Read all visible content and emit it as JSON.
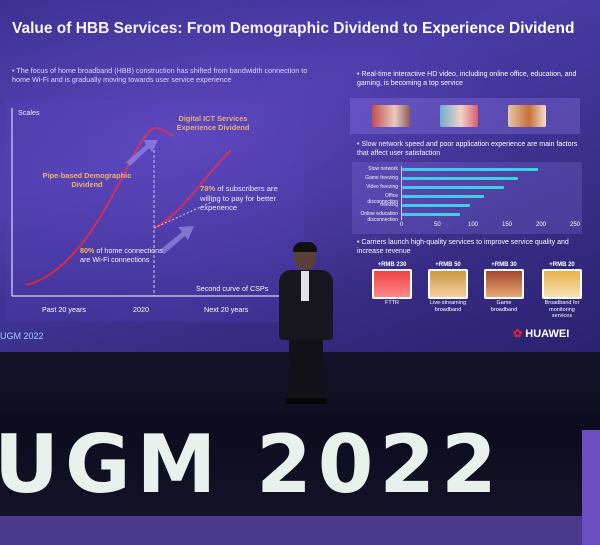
{
  "slide": {
    "title": "Value of HBB Services: From Demographic Dividend to Experience Dividend",
    "intro": "The focus of home broadband (HBB) construction has shifted from bandwidth connection to home Wi-Fi and is gradually moving towards user service experience",
    "chart": {
      "y_label": "Scales",
      "curve1_label": "Pipe-based Demographic Dividend",
      "curve2_label": "Digital ICT Services Experience Dividend",
      "stat1_value": "80%",
      "stat1_text": "of home connections are Wi-Fi connections",
      "stat2_value": "78%",
      "stat2_text": "of subscribers are willing to pay for better experience",
      "curve_note": "Second curve of CSPs",
      "x_labels": [
        "Past 20 years",
        "2020",
        "Next 20 years"
      ]
    },
    "right": {
      "point1": "Real-time interactive HD video, including online office, education, and gaming, is becoming a top service",
      "point2": "Slow network speed and poor application experience are main factors that affect user satisfaction",
      "bars": [
        {
          "label": "Slow network",
          "value": 200
        },
        {
          "label": "Game freezing",
          "value": 170
        },
        {
          "label": "Video freezing",
          "value": 150
        },
        {
          "label": "Office disconnection",
          "value": 120
        },
        {
          "label": "freezing",
          "value": 100
        },
        {
          "label": "Online education disconnection",
          "value": 85
        }
      ],
      "axis_ticks": [
        "0",
        "50",
        "100",
        "150",
        "200",
        "250"
      ],
      "point3": "Carriers launch high-quality services to improve service quality and increase revenue",
      "services": [
        {
          "price": "+RMB 230",
          "name": "FTTR"
        },
        {
          "price": "+RMB 50",
          "name": "Live-streaming broadband"
        },
        {
          "price": "+RMB 30",
          "name": "Game broadband"
        },
        {
          "price": "+RMB 20",
          "name": "Broadband for monitoring services"
        }
      ]
    },
    "event_small": "UGM 2022",
    "brand": "HUAWEI"
  },
  "stage": {
    "banner": "UGM 2022"
  },
  "colors": {
    "accent_gold": "#ffc14a",
    "bar_cyan": "#3fd1e6",
    "screen_purple": "#3f329a",
    "curve_red": "#d9263e"
  }
}
